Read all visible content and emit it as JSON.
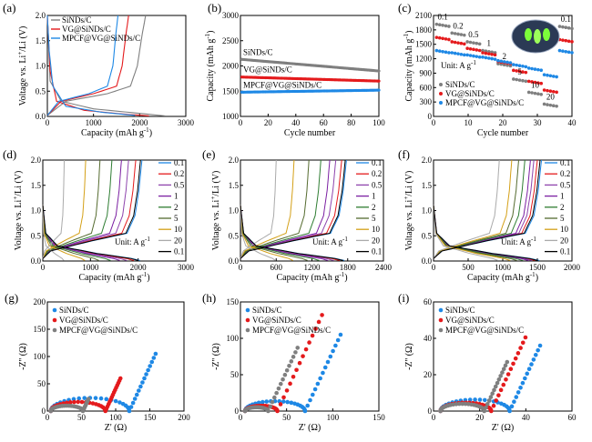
{
  "chart_data": [
    {
      "id": "a",
      "panel_label": "(a)",
      "type": "line",
      "xlabel": "Capacity (mAh g<sup>-1</sup>)",
      "ylabel": "Voltage vs. Li<sup>+</sup>/Li (V)",
      "xlim": [
        0,
        3000
      ],
      "ylim": [
        0,
        2.0
      ],
      "xticks": [
        "0",
        "1000",
        "2000",
        "3000"
      ],
      "yticks": [
        "0.0",
        "0.5",
        "1.0",
        "1.5",
        "2.0"
      ],
      "series": [
        {
          "name": "SiNDs/C",
          "color": "#7f7f7f",
          "discharge": [
            [
              0,
              2.0
            ],
            [
              60,
              0.7
            ],
            [
              300,
              0.3
            ],
            [
              1000,
              0.15
            ],
            [
              2000,
              0.06
            ],
            [
              2550,
              0.01
            ]
          ],
          "charge": [
            [
              0,
              0.02
            ],
            [
              400,
              0.3
            ],
            [
              1300,
              0.45
            ],
            [
              1800,
              0.6
            ],
            [
              1950,
              1.0
            ],
            [
              2050,
              1.6
            ],
            [
              2130,
              2.0
            ]
          ]
        },
        {
          "name": "VG@SiNDs/C",
          "color": "#e41a1c",
          "discharge": [
            [
              0,
              2.0
            ],
            [
              60,
              0.9
            ],
            [
              200,
              0.3
            ],
            [
              800,
              0.12
            ],
            [
              1600,
              0.05
            ],
            [
              2200,
              0.01
            ]
          ],
          "charge": [
            [
              0,
              0.02
            ],
            [
              300,
              0.3
            ],
            [
              1000,
              0.45
            ],
            [
              1500,
              0.6
            ],
            [
              1620,
              1.0
            ],
            [
              1700,
              1.6
            ],
            [
              1760,
              2.0
            ]
          ]
        },
        {
          "name": "MPCF@VG@SiNDs/C",
          "color": "#1e88e5",
          "discharge": [
            [
              0,
              2.0
            ],
            [
              40,
              1.3
            ],
            [
              120,
              0.6
            ],
            [
              400,
              0.2
            ],
            [
              1200,
              0.08
            ],
            [
              1900,
              0.02
            ]
          ],
          "charge": [
            [
              0,
              0.02
            ],
            [
              250,
              0.3
            ],
            [
              900,
              0.45
            ],
            [
              1300,
              0.6
            ],
            [
              1420,
              1.0
            ],
            [
              1480,
              1.6
            ],
            [
              1530,
              2.0
            ]
          ]
        }
      ]
    },
    {
      "id": "b",
      "panel_label": "(b)",
      "type": "scatter",
      "xlabel": "Cycle number",
      "ylabel": "Capacity (mAh g<sup>-1</sup>)",
      "xlim": [
        0,
        100
      ],
      "ylim": [
        1000,
        3000
      ],
      "xticks": [
        "0",
        "20",
        "40",
        "60",
        "80",
        "100"
      ],
      "yticks": [
        "1000",
        "1500",
        "2000",
        "2500",
        "3000"
      ],
      "series": [
        {
          "name": "SiNDs/C",
          "color": "#7f7f7f",
          "start": 2130,
          "end": 1900
        },
        {
          "name": "VG@SiNDs/C",
          "color": "#e41a1c",
          "start": 1780,
          "end": 1700
        },
        {
          "name": "MPCF@VG@SiNDs/C",
          "color": "#1e88e5",
          "start": 1480,
          "end": 1520
        }
      ]
    },
    {
      "id": "c",
      "panel_label": "(c)",
      "type": "scatter",
      "xlabel": "Cycle number",
      "ylabel": "Capacity (mAh g<sup>-1</sup>)",
      "xlim": [
        0,
        45
      ],
      "ylim": [
        0,
        2300
      ],
      "xticks": [
        "0",
        "10",
        "20",
        "30",
        "40"
      ],
      "yticks": [
        "0",
        "300",
        "600",
        "900",
        "1200",
        "1500",
        "1800",
        "2100"
      ],
      "rates": [
        "0.1",
        "0.2",
        "0.5",
        "1",
        "2",
        "5",
        "10",
        "20",
        "0.1"
      ],
      "unit_text": "Unit: A g<sup>-1</sup>",
      "series": [
        {
          "name": "SiNDs/C",
          "color": "#7f7f7f",
          "levels": [
            2100,
            1900,
            1700,
            1500,
            1200,
            850,
            550,
            280,
            2050
          ]
        },
        {
          "name": "VG@SiNDs/C",
          "color": "#e41a1c",
          "levels": [
            1800,
            1700,
            1550,
            1450,
            1250,
            1050,
            800,
            600,
            1750
          ]
        },
        {
          "name": "MPCF@VG@SiNDs/C",
          "color": "#1e88e5",
          "levels": [
            1500,
            1450,
            1400,
            1350,
            1270,
            1180,
            1100,
            950,
            1500
          ]
        }
      ]
    },
    {
      "id": "d",
      "panel_label": "(d)",
      "type": "line",
      "xlabel": "Capacity (mAh g<sup>-1</sup>)",
      "ylabel": "Voltage vs. Li<sup>+</sup>/Li (V)",
      "xlim": [
        0,
        3000
      ],
      "ylim": [
        0,
        2.0
      ],
      "xticks": [
        "0",
        "1000",
        "2000",
        "3000"
      ],
      "yticks": [
        "0.0",
        "0.5",
        "1.0",
        "1.5",
        "2.0"
      ],
      "unit_text": "Unit: A g<sup>-1</sup>",
      "rates": [
        "0.1",
        "0.2",
        "0.5",
        "1",
        "2",
        "5",
        "10",
        "20",
        "0.1"
      ],
      "capacities": [
        2080,
        1950,
        1800,
        1650,
        1450,
        1200,
        900,
        450,
        2050
      ]
    },
    {
      "id": "e",
      "panel_label": "(e)",
      "type": "line",
      "xlabel": "Capacity (mAh g<sup>-1</sup>)",
      "ylabel": "Voltage vs. Li<sup>+</sup>/Li (V)",
      "xlim": [
        0,
        2400
      ],
      "ylim": [
        0,
        2.0
      ],
      "xticks": [
        "0",
        "600",
        "1200",
        "1800",
        "2400"
      ],
      "yticks": [
        "0.0",
        "0.5",
        "1.0",
        "1.5",
        "2.0"
      ],
      "unit_text": "Unit: A g<sup>-1</sup>",
      "rates": [
        "0.1",
        "0.2",
        "0.5",
        "1",
        "2",
        "5",
        "10",
        "20",
        "0.1"
      ],
      "capacities": [
        1780,
        1700,
        1600,
        1500,
        1350,
        1150,
        900,
        600,
        1760
      ]
    },
    {
      "id": "f",
      "panel_label": "(f)",
      "type": "line",
      "xlabel": "Capacity (mAh g<sup>-1</sup>)",
      "ylabel": "Voltage vs. Li<sup>+</sup>/Li (V)",
      "xlim": [
        0,
        2000
      ],
      "ylim": [
        0,
        2.0
      ],
      "xticks": [
        "0",
        "500",
        "1000",
        "1500",
        "2000"
      ],
      "yticks": [
        "0.0",
        "0.5",
        "1.0",
        "1.5",
        "2.0"
      ],
      "unit_text": "Unit: A g<sup>-1</sup>",
      "rates": [
        "0.1",
        "0.2",
        "0.5",
        "1",
        "2",
        "5",
        "10",
        "20",
        "0.1"
      ],
      "capacities": [
        1560,
        1500,
        1450,
        1400,
        1320,
        1230,
        1130,
        950,
        1540
      ]
    },
    {
      "id": "g",
      "panel_label": "(g)",
      "type": "scatter",
      "xlabel": "Z' (Ω)",
      "ylabel": "-Z'' (Ω)",
      "xlim": [
        0,
        200
      ],
      "ylim": [
        0,
        200
      ],
      "xticks": [
        "0",
        "50",
        "100",
        "150",
        "200"
      ],
      "yticks": [
        "0",
        "50",
        "100",
        "150",
        "200"
      ],
      "series": [
        {
          "name": "SiNDs/C",
          "color": "#1e88e5",
          "r0": 5,
          "rct": 120,
          "tail": 70
        },
        {
          "name": "VG@SiNDs/C",
          "color": "#e41a1c",
          "r0": 5,
          "rct": 85,
          "tail": 40
        },
        {
          "name": "MPCF@VG@SiNDs/C",
          "color": "#7f7f7f",
          "r0": 5,
          "rct": 52,
          "tail": 15
        }
      ]
    },
    {
      "id": "h",
      "panel_label": "(h)",
      "type": "scatter",
      "xlabel": "Z' (Ω)",
      "ylabel": "-Z'' (Ω)",
      "xlim": [
        0,
        150
      ],
      "ylim": [
        0,
        150
      ],
      "xticks": [
        "0",
        "50",
        "100",
        "150"
      ],
      "yticks": [
        "0",
        "50",
        "100",
        "150"
      ],
      "series": [
        {
          "name": "SiNDs/C",
          "color": "#1e88e5",
          "r0": 5,
          "rct": 70,
          "tail": 70
        },
        {
          "name": "VG@SiNDs/C",
          "color": "#e41a1c",
          "r0": 5,
          "rct": 40,
          "tail": 88
        },
        {
          "name": "MPCF@VG@SiNDs/C",
          "color": "#7f7f7f",
          "r0": 5,
          "rct": 30,
          "tail": 58
        }
      ]
    },
    {
      "id": "i",
      "panel_label": "(i)",
      "type": "scatter",
      "xlabel": "Z' (Ω)",
      "ylabel": "-Z'' (Ω)",
      "xlim": [
        0,
        60
      ],
      "ylim": [
        0,
        60
      ],
      "xticks": [
        "0",
        "20",
        "40",
        "60"
      ],
      "yticks": [
        "0",
        "20",
        "40",
        "60"
      ],
      "series": [
        {
          "name": "SiNDs/C",
          "color": "#1e88e5",
          "r0": 3,
          "rct": 33,
          "tail": 24
        },
        {
          "name": "VG@SiNDs/C",
          "color": "#e41a1c",
          "r0": 3,
          "rct": 25,
          "tail": 27
        },
        {
          "name": "MPCF@VG@SiNDs/C",
          "color": "#7f7f7f",
          "r0": 3,
          "rct": 22,
          "tail": 18
        }
      ]
    }
  ],
  "rate_colors": [
    "#1e88e5",
    "#e41a1c",
    "#8e44ad",
    "#7b1fa2",
    "#2e7d32",
    "#556b2f",
    "#d4a017",
    "#aaaaaa",
    "#000000"
  ]
}
